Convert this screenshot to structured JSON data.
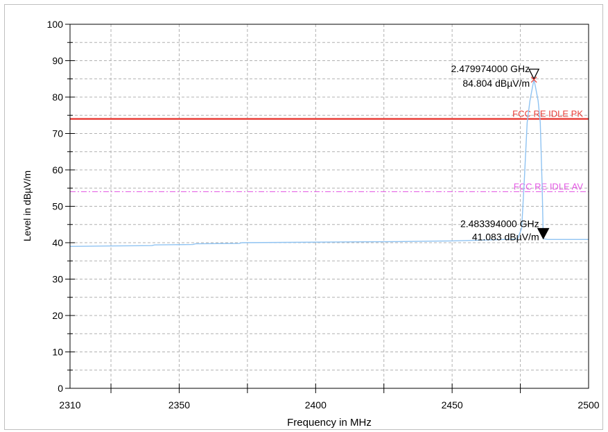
{
  "chart_data": {
    "type": "line",
    "xlabel": "Frequency in MHz",
    "ylabel": "Level in dBµV/m",
    "xlim": [
      2310,
      2500
    ],
    "ylim": [
      0,
      100
    ],
    "x_ticks": [
      2310,
      2350,
      2400,
      2450,
      2500
    ],
    "y_ticks": [
      0,
      10,
      20,
      30,
      40,
      50,
      60,
      70,
      80,
      90,
      100
    ],
    "grid": true,
    "series": [
      {
        "color": "#8fc3f2",
        "x": [
          2310,
          2325,
          2340,
          2341,
          2355,
          2356,
          2372,
          2373,
          2390,
          2410,
          2430,
          2450,
          2455,
          2465,
          2474,
          2475.5,
          2476.5,
          2477.5,
          2478.5,
          2479.5,
          2479.974,
          2480.5,
          2481.5,
          2482.3,
          2483,
          2483.394,
          2485,
          2490,
          2500
        ],
        "y": [
          39.0,
          39.1,
          39.2,
          39.4,
          39.5,
          39.7,
          39.8,
          40.0,
          40.1,
          40.2,
          40.3,
          40.5,
          40.6,
          40.8,
          41.0,
          44,
          58,
          73,
          79,
          83,
          84.804,
          83,
          79,
          73,
          55,
          41.083,
          40.9,
          40.9,
          40.9
        ]
      }
    ],
    "limit_lines": [
      {
        "name": "FCC RE IDLE PK",
        "y": 74,
        "color": "#e8403a",
        "style": "solid"
      },
      {
        "name": "FCC RE IDLE AV",
        "y": 54,
        "color": "#e458e4",
        "style": "dashdot"
      }
    ],
    "markers": [
      {
        "x": 2479.974,
        "y": 84.804,
        "freq_label": "2.479974000 GHz",
        "level_label": "84.804 dBµV/m",
        "symbol": "open-triangle"
      },
      {
        "x": 2483.394,
        "y": 41.083,
        "freq_label": "2.483394000 GHz",
        "level_label": "41.083 dBµV/m",
        "symbol": "filled-triangle"
      }
    ]
  }
}
